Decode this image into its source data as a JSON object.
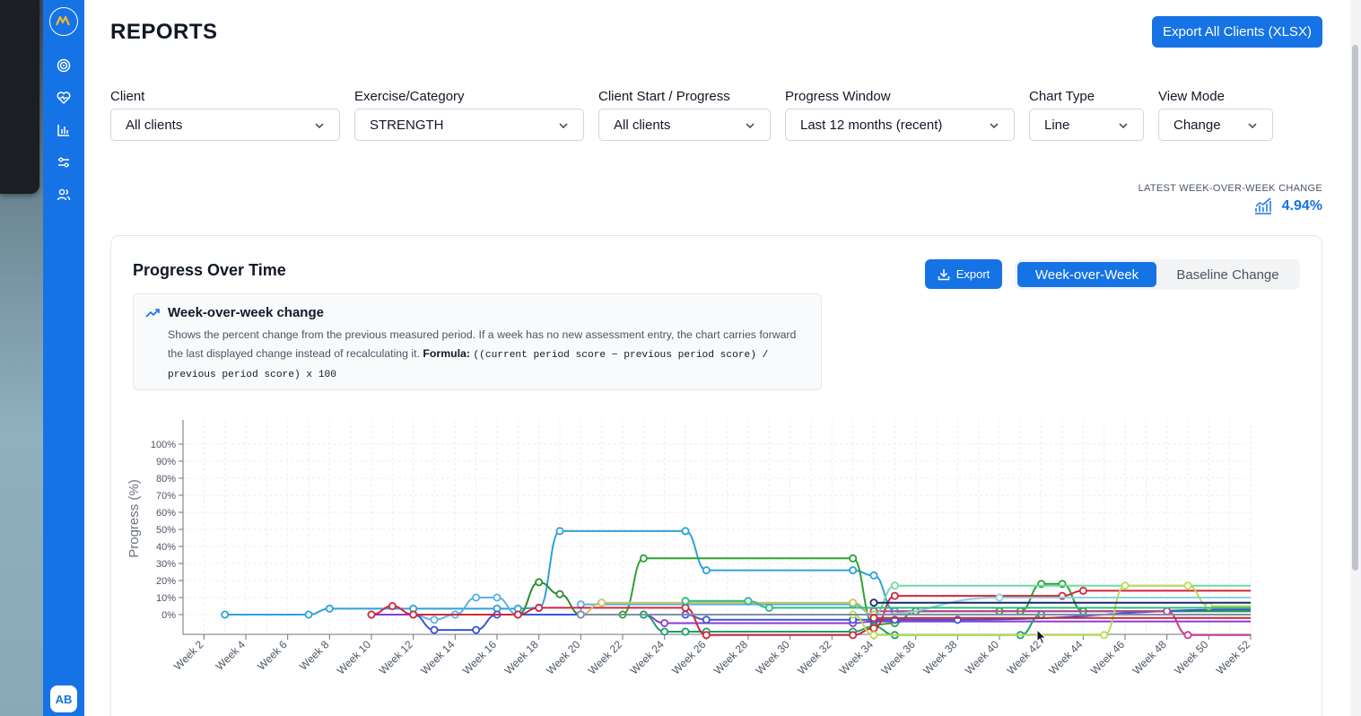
{
  "page": {
    "title": "REPORTS",
    "export_all_label": "Export All Clients (XLSX)"
  },
  "sidebar": {
    "items": [
      {
        "icon": "target-icon"
      },
      {
        "icon": "heart-pulse-icon"
      },
      {
        "icon": "bar-chart-icon"
      },
      {
        "icon": "sliders-icon"
      },
      {
        "icon": "users-icon"
      }
    ],
    "avatar_initials": "AB"
  },
  "filters": [
    {
      "label": "Client",
      "value": "All clients"
    },
    {
      "label": "Exercise/Category",
      "value": "STRENGTH"
    },
    {
      "label": "Client Start / Progress",
      "value": "All clients"
    },
    {
      "label": "Progress Window",
      "value": "Last 12 months (recent)"
    },
    {
      "label": "Chart Type",
      "value": "Line"
    },
    {
      "label": "View Mode",
      "value": "Change"
    }
  ],
  "kpi": {
    "label": "LATEST WEEK-OVER-WEEK CHANGE",
    "value": "4.94%"
  },
  "card": {
    "title": "Progress Over Time",
    "export_label": "Export",
    "toggle": {
      "active": "Week-over-Week",
      "inactive": "Baseline Change"
    },
    "info": {
      "title": "Week-over-week change",
      "text": "Shows the percent change from the previous measured period. If a week has no new assessment entry, the chart carries forward the last displayed change instead of recalculating it.",
      "formula_label": "Formula:",
      "formula": "((current period score − previous period score) / previous period score) x 100"
    }
  },
  "chart_data": {
    "type": "line",
    "ylabel": "Progress (%)",
    "ylim": [
      -10,
      100
    ],
    "yticks": [
      "0%",
      "10%",
      "20%",
      "30%",
      "40%",
      "50%",
      "60%",
      "70%",
      "80%",
      "90%",
      "100%"
    ],
    "x_labels": [
      "Week 2",
      "Week 4",
      "Week 6",
      "Week 8",
      "Week 10",
      "Week 12",
      "Week 14",
      "Week 16",
      "Week 18",
      "Week 20",
      "Week 22",
      "Week 24",
      "Week 26",
      "Week 28",
      "Week 30",
      "Week 32",
      "Week 34",
      "Week 36",
      "Week 38",
      "Week 40",
      "Week 42",
      "Week 44",
      "Week 46",
      "Week 48",
      "Week 50",
      "Week 52"
    ],
    "grid": true,
    "series": [
      {
        "color": "#2ea1dc",
        "points": [
          [
            3,
            0
          ],
          [
            7,
            0
          ],
          [
            8,
            3.5
          ],
          [
            12,
            3.5
          ],
          [
            16,
            3.5
          ],
          [
            17,
            3.5
          ],
          [
            18,
            4
          ],
          [
            19,
            49
          ],
          [
            25,
            49
          ],
          [
            26,
            26
          ],
          [
            33,
            26
          ],
          [
            34,
            23
          ],
          [
            35,
            2
          ],
          [
            52,
            2
          ]
        ]
      },
      {
        "color": "#2aa32f",
        "points": [
          [
            17,
            0
          ],
          [
            22,
            0
          ],
          [
            23,
            33
          ],
          [
            33,
            33
          ],
          [
            34,
            -6
          ],
          [
            35,
            -5
          ],
          [
            36,
            2
          ],
          [
            40,
            2
          ],
          [
            41,
            2
          ],
          [
            42,
            18
          ],
          [
            43,
            18
          ],
          [
            44,
            2
          ],
          [
            52,
            2
          ]
        ]
      },
      {
        "color": "#5ab0e8",
        "points": [
          [
            12,
            0
          ],
          [
            13,
            -3
          ],
          [
            14,
            0
          ],
          [
            15,
            10
          ],
          [
            16,
            10
          ],
          [
            17,
            0
          ],
          [
            20,
            0
          ],
          [
            20,
            6
          ],
          [
            33,
            6
          ],
          [
            34,
            0
          ],
          [
            52,
            0
          ]
        ]
      },
      {
        "color": "#8a3bd0",
        "points": [
          [
            10,
            0
          ],
          [
            20,
            0
          ],
          [
            23,
            0
          ],
          [
            24,
            -5
          ],
          [
            33,
            -5
          ],
          [
            34,
            -4
          ],
          [
            52,
            -4
          ]
        ]
      },
      {
        "color": "#3a55d8",
        "points": [
          [
            12,
            0
          ],
          [
            13,
            -9
          ],
          [
            15,
            -9
          ],
          [
            16,
            0
          ],
          [
            25,
            0
          ],
          [
            26,
            -3
          ],
          [
            33,
            -3
          ],
          [
            34,
            -3
          ],
          [
            35,
            -3
          ],
          [
            38,
            -3
          ],
          [
            52,
            3
          ]
        ]
      },
      {
        "color": "#2e8b2e",
        "points": [
          [
            17,
            0
          ],
          [
            18,
            19
          ],
          [
            19,
            12
          ],
          [
            20,
            0
          ],
          [
            52,
            0
          ]
        ]
      },
      {
        "color": "#1aa068",
        "points": [
          [
            23,
            0
          ],
          [
            24,
            -10
          ],
          [
            25,
            -10
          ],
          [
            26,
            -10
          ],
          [
            33,
            -10
          ],
          [
            34,
            -7
          ],
          [
            35,
            -12
          ],
          [
            41,
            -12
          ],
          [
            42,
            0
          ],
          [
            52,
            0
          ]
        ]
      },
      {
        "color": "#d4263a",
        "points": [
          [
            10,
            0
          ],
          [
            11,
            5
          ],
          [
            12,
            0
          ],
          [
            17,
            0
          ],
          [
            18,
            4
          ],
          [
            25,
            4
          ],
          [
            26,
            -12
          ],
          [
            33,
            -12
          ],
          [
            34,
            -8
          ],
          [
            35,
            11
          ],
          [
            43,
            11
          ],
          [
            44,
            14
          ],
          [
            52,
            14
          ]
        ]
      },
      {
        "color": "#c93c8c",
        "points": [
          [
            34,
            2
          ],
          [
            48,
            2
          ],
          [
            49,
            -12
          ],
          [
            52,
            -12
          ]
        ]
      },
      {
        "color": "#6fd9a6",
        "points": [
          [
            34,
            0
          ],
          [
            35,
            17
          ],
          [
            52,
            17
          ]
        ]
      },
      {
        "color": "#b8dc52",
        "points": [
          [
            33,
            0
          ],
          [
            34,
            -12
          ],
          [
            45,
            -12
          ],
          [
            46,
            17
          ],
          [
            49,
            17
          ],
          [
            50,
            5
          ],
          [
            52,
            5
          ]
        ]
      },
      {
        "color": "#8fcfe0",
        "points": [
          [
            34,
            0
          ],
          [
            40,
            10
          ],
          [
            52,
            10
          ]
        ]
      },
      {
        "color": "#c9c35e",
        "points": [
          [
            20,
            0
          ],
          [
            21,
            7
          ],
          [
            33,
            7
          ],
          [
            34,
            0
          ],
          [
            52,
            0
          ]
        ]
      },
      {
        "color": "#7f8fa6",
        "points": [
          [
            20,
            0
          ],
          [
            52,
            0
          ]
        ]
      },
      {
        "color": "#c8283a",
        "points": [
          [
            34,
            -2
          ],
          [
            52,
            -2
          ]
        ]
      },
      {
        "color": "#1b2a6e",
        "points": [
          [
            34,
            7
          ],
          [
            52,
            7
          ]
        ]
      },
      {
        "color": "#2ebd7e",
        "points": [
          [
            25,
            8
          ],
          [
            28,
            8
          ],
          [
            29,
            4
          ],
          [
            52,
            4
          ]
        ]
      }
    ]
  }
}
